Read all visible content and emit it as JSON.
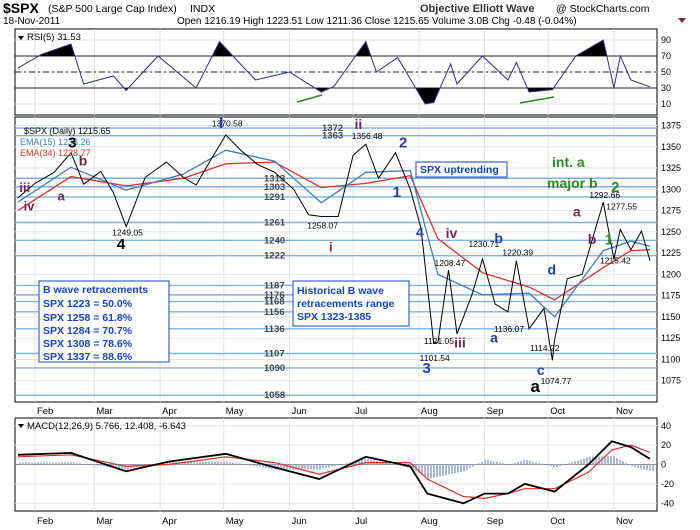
{
  "header": {
    "ticker": "$SPX",
    "name": "(S&P 500 Large Cap Index)",
    "exchange": "INDX",
    "source": "@ StockCharts.com",
    "brand": "Objective Elliott Wave",
    "date": "18-Nov-2011",
    "ohlc": "Open 1216.19  High 1223.51  Low 1211.36  Close 1215.65  Volume 3.0B  Chg -0.48 (-0.04%)"
  },
  "rsi_panel": {
    "label": "RSI(5) 31.53",
    "ticks": [
      "90",
      "70",
      "50",
      "30",
      "10"
    ]
  },
  "price_panel": {
    "legend": [
      "$SPX (Daily) 1215.65",
      "EMA(15) 1233.26",
      "EMA(34) 1228.77"
    ],
    "yticks": [
      "1375",
      "1350",
      "1325",
      "1300",
      "1275",
      "1250",
      "1225",
      "1200",
      "1175",
      "1150",
      "1125",
      "1100",
      "1075"
    ],
    "levels_text": [
      "1372",
      "1363",
      "1313",
      "1303",
      "1291",
      "1261",
      "1240",
      "1222",
      "1187",
      "1176",
      "1168",
      "1156",
      "1136",
      "1107",
      "1090",
      "1058"
    ],
    "price_labels": [
      "1370.58",
      "1356.48",
      "1249.05",
      "1258.07",
      "1208.47",
      "1230.71",
      "1220.39",
      "1101.54",
      "1121.05",
      "1136.07",
      "1114.22",
      "1074.77",
      "1292.66",
      "1277.55",
      "1215.42"
    ],
    "wave_labels": [
      "iii",
      "iv",
      "3",
      "b",
      "a",
      "4",
      "I",
      "ii",
      "i",
      "2",
      "1",
      "4",
      "iv",
      "b",
      "3",
      "iii",
      "a",
      "c",
      "d",
      "a",
      "a",
      "b",
      "2",
      "1"
    ],
    "annotations": {
      "spx_up": "SPX uptrending",
      "int_a": "int. a",
      "major_b": "major b",
      "b_title": "B wave retracements",
      "b_lines": [
        "SPX 1223 = 50.0%",
        "SPX 1258 = 61.8%",
        "SPX 1284 = 70.7%",
        "SPX 1308 = 78.6%",
        "SPX 1337 = 88.6%"
      ],
      "hist_lines": [
        "Historical B wave",
        "retracements range",
        "SPX 1323-1385"
      ]
    },
    "months": [
      "Feb",
      "Mar",
      "Apr",
      "May",
      "Jun",
      "Jul",
      "Aug",
      "Sep",
      "Oct",
      "Nov"
    ]
  },
  "macd_panel": {
    "label": "MACD(12,26,9) 5.766, 12.408, -6.643",
    "yticks": [
      "40",
      "20",
      "0",
      "-20",
      "-40"
    ]
  },
  "colors": {
    "price": "#000000",
    "ema15": "#3a7fc4",
    "ema34": "#e03020",
    "level": "#7fb2e0",
    "wave_blue": "#1f3fa8",
    "wave_maroon": "#7a1f5a",
    "wave_green": "#2a8a1f",
    "annot_blue": "#1144cc"
  },
  "chart_data": [
    {
      "type": "line",
      "title": "$SPX (S&P 500 Large Cap Index) INDX",
      "x_range": [
        "2011-01-24",
        "2011-11-18"
      ],
      "ylim": [
        1050,
        1385
      ],
      "grid": true,
      "horizontal_levels": [
        1372,
        1363,
        1313,
        1303,
        1291,
        1261,
        1240,
        1222,
        1187,
        1176,
        1168,
        1156,
        1136,
        1107,
        1090,
        1058
      ],
      "series": [
        {
          "name": "$SPX (Daily) 1215.65",
          "x": [
            "2011-01-24",
            "2011-02-01",
            "2011-02-10",
            "2011-02-18",
            "2011-02-24",
            "2011-03-04",
            "2011-03-10",
            "2011-03-16",
            "2011-03-25",
            "2011-04-04",
            "2011-04-12",
            "2011-04-18",
            "2011-04-25",
            "2011-05-02",
            "2011-05-09",
            "2011-05-17",
            "2011-05-25",
            "2011-06-03",
            "2011-06-10",
            "2011-06-16",
            "2011-06-24",
            "2011-07-01",
            "2011-07-07",
            "2011-07-13",
            "2011-07-21",
            "2011-07-28",
            "2011-08-02",
            "2011-08-08",
            "2011-08-10",
            "2011-08-15",
            "2011-08-19",
            "2011-08-26",
            "2011-08-31",
            "2011-09-06",
            "2011-09-12",
            "2011-09-16",
            "2011-09-22",
            "2011-09-29",
            "2011-10-03",
            "2011-10-04",
            "2011-10-10",
            "2011-10-17",
            "2011-10-27",
            "2011-11-01",
            "2011-11-04",
            "2011-11-09",
            "2011-11-14",
            "2011-11-18"
          ],
          "y": [
            1290,
            1307,
            1320,
            1343,
            1306,
            1321,
            1296,
            1256,
            1314,
            1332,
            1314,
            1305,
            1335,
            1364,
            1346,
            1329,
            1320,
            1300,
            1270,
            1268,
            1268,
            1340,
            1353,
            1313,
            1343,
            1300,
            1254,
            1119,
            1120,
            1205,
            1130,
            1176,
            1218,
            1165,
            1156,
            1216,
            1136,
            1160,
            1099,
            1123,
            1195,
            1200,
            1285,
            1218,
            1253,
            1229,
            1251,
            1216
          ]
        },
        {
          "name": "EMA(15) 1233.26",
          "x": [
            "2011-01-24",
            "2011-02-18",
            "2011-03-16",
            "2011-04-12",
            "2011-05-02",
            "2011-05-25",
            "2011-06-16",
            "2011-07-07",
            "2011-07-28",
            "2011-08-10",
            "2011-08-31",
            "2011-09-22",
            "2011-10-04",
            "2011-10-27",
            "2011-11-09",
            "2011-11-18"
          ],
          "y": [
            1285,
            1326,
            1299,
            1318,
            1346,
            1333,
            1284,
            1320,
            1322,
            1200,
            1176,
            1178,
            1150,
            1228,
            1239,
            1233
          ]
        },
        {
          "name": "EMA(34) 1228.77",
          "x": [
            "2011-01-24",
            "2011-02-18",
            "2011-03-16",
            "2011-04-12",
            "2011-05-02",
            "2011-05-25",
            "2011-06-16",
            "2011-07-07",
            "2011-07-28",
            "2011-08-10",
            "2011-08-31",
            "2011-09-22",
            "2011-10-04",
            "2011-10-27",
            "2011-11-09",
            "2011-11-18"
          ],
          "y": [
            1275,
            1315,
            1304,
            1313,
            1330,
            1332,
            1302,
            1307,
            1316,
            1242,
            1202,
            1185,
            1170,
            1208,
            1228,
            1229
          ]
        }
      ]
    },
    {
      "type": "line",
      "title": "RSI(5) 31.53",
      "ylim": [
        0,
        100
      ],
      "reference_lines": [
        70,
        50,
        30
      ],
      "series": [
        {
          "name": "RSI(5) 31.53",
          "x": [
            "2011-01-24",
            "2011-02-04",
            "2011-02-18",
            "2011-02-24",
            "2011-03-10",
            "2011-03-16",
            "2011-03-31",
            "2011-04-18",
            "2011-04-29",
            "2011-05-16",
            "2011-06-01",
            "2011-06-16",
            "2011-06-22",
            "2011-07-07",
            "2011-07-12",
            "2011-07-22",
            "2011-08-04",
            "2011-08-08",
            "2011-08-16",
            "2011-08-19",
            "2011-08-31",
            "2011-09-12",
            "2011-09-16",
            "2011-09-22",
            "2011-10-03",
            "2011-10-14",
            "2011-10-27",
            "2011-11-01",
            "2011-11-04",
            "2011-11-09",
            "2011-11-18"
          ],
          "y": [
            55,
            72,
            85,
            35,
            45,
            27,
            70,
            30,
            88,
            40,
            50,
            25,
            32,
            88,
            50,
            68,
            10,
            12,
            60,
            35,
            70,
            40,
            62,
            25,
            28,
            70,
            90,
            30,
            70,
            40,
            31.53
          ]
        }
      ]
    },
    {
      "type": "line",
      "title": "MACD(12,26,9) 5.766, 12.408, -6.643",
      "ylim": [
        -48,
        48
      ],
      "series": [
        {
          "name": "MACD",
          "x": [
            "2011-01-24",
            "2011-02-18",
            "2011-03-16",
            "2011-04-05",
            "2011-05-02",
            "2011-05-25",
            "2011-06-15",
            "2011-07-07",
            "2011-07-28",
            "2011-08-05",
            "2011-08-22",
            "2011-09-01",
            "2011-09-12",
            "2011-09-20",
            "2011-10-04",
            "2011-10-20",
            "2011-10-31",
            "2011-11-09",
            "2011-11-18"
          ],
          "y": [
            10,
            12,
            -7,
            3,
            11,
            -3,
            -15,
            8,
            -2,
            -30,
            -40,
            -30,
            -30,
            -20,
            -28,
            0,
            24,
            18,
            5.766
          ]
        },
        {
          "name": "Signal",
          "x": [
            "2011-01-24",
            "2011-02-18",
            "2011-03-16",
            "2011-04-05",
            "2011-05-02",
            "2011-05-25",
            "2011-06-15",
            "2011-07-07",
            "2011-07-28",
            "2011-08-05",
            "2011-08-22",
            "2011-09-01",
            "2011-09-12",
            "2011-09-20",
            "2011-10-04",
            "2011-10-20",
            "2011-10-31",
            "2011-11-09",
            "2011-11-18"
          ],
          "y": [
            8,
            10,
            -2,
            0,
            8,
            2,
            -10,
            2,
            2,
            -15,
            -33,
            -35,
            -30,
            -25,
            -25,
            -8,
            15,
            20,
            12.408
          ]
        }
      ]
    }
  ]
}
